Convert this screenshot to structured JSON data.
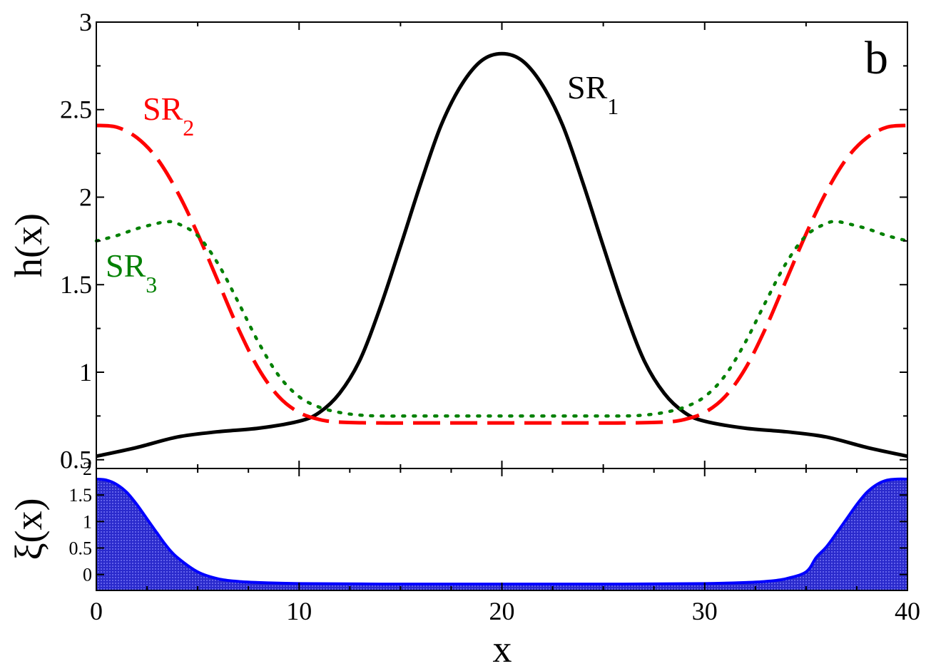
{
  "chart_data": [
    {
      "type": "line",
      "panel_label": "b",
      "ylabel": "h(x)",
      "xlim": [
        0,
        40
      ],
      "ylim": [
        0.45,
        3.0
      ],
      "xticks": [
        0,
        10,
        20,
        30,
        40
      ],
      "yticks": [
        0.5,
        1,
        1.5,
        2,
        2.5,
        3
      ],
      "ytick_labels": [
        "0.5",
        "1",
        "1.5",
        "2",
        "2.5",
        "3"
      ],
      "grid": false,
      "series": [
        {
          "name": "SR",
          "subscript": "1",
          "color": "#000000",
          "style": "solid",
          "x": [
            0,
            2,
            4,
            6,
            8,
            10,
            11,
            12,
            13,
            14,
            15,
            16,
            17,
            18,
            19,
            20,
            21,
            22,
            23,
            24,
            25,
            26,
            27,
            28,
            29,
            30,
            32,
            34,
            36,
            38,
            40
          ],
          "y": [
            0.52,
            0.57,
            0.63,
            0.66,
            0.68,
            0.72,
            0.77,
            0.88,
            1.07,
            1.37,
            1.72,
            2.08,
            2.41,
            2.64,
            2.78,
            2.82,
            2.78,
            2.64,
            2.41,
            2.08,
            1.72,
            1.37,
            1.07,
            0.88,
            0.77,
            0.72,
            0.68,
            0.66,
            0.63,
            0.57,
            0.52
          ]
        },
        {
          "name": "SR",
          "subscript": "2",
          "color": "#ff0000",
          "style": "dashed",
          "x": [
            0,
            1,
            2,
            3,
            4,
            5,
            6,
            7,
            8,
            9,
            10,
            11,
            12,
            14,
            16,
            20,
            24,
            26,
            28,
            29,
            30,
            31,
            32,
            33,
            34,
            35,
            36,
            37,
            38,
            39,
            40
          ],
          "y": [
            2.41,
            2.4,
            2.34,
            2.22,
            2.03,
            1.79,
            1.52,
            1.25,
            1.02,
            0.86,
            0.77,
            0.73,
            0.715,
            0.71,
            0.71,
            0.71,
            0.71,
            0.71,
            0.715,
            0.73,
            0.77,
            0.86,
            1.02,
            1.25,
            1.52,
            1.79,
            2.03,
            2.22,
            2.34,
            2.4,
            2.41
          ]
        },
        {
          "name": "SR",
          "subscript": "3",
          "color": "#008000",
          "style": "dotted",
          "x": [
            0,
            1,
            2,
            3,
            3.5,
            4,
            5,
            6,
            7,
            8,
            9,
            10,
            11,
            12,
            13,
            14,
            16,
            20,
            24,
            26,
            27,
            28,
            29,
            30,
            31,
            32,
            33,
            34,
            35,
            36,
            36.5,
            37,
            38,
            39,
            40
          ],
          "y": [
            1.75,
            1.78,
            1.82,
            1.85,
            1.86,
            1.85,
            1.78,
            1.62,
            1.4,
            1.17,
            0.98,
            0.86,
            0.8,
            0.77,
            0.755,
            0.75,
            0.75,
            0.75,
            0.75,
            0.75,
            0.755,
            0.77,
            0.8,
            0.86,
            0.98,
            1.17,
            1.4,
            1.62,
            1.78,
            1.85,
            1.86,
            1.85,
            1.82,
            1.78,
            1.75
          ]
        }
      ]
    },
    {
      "type": "area",
      "xlabel": "x",
      "ylabel": "ξ(x)",
      "xlim": [
        0,
        40
      ],
      "ylim": [
        -0.3,
        2.0
      ],
      "xticks": [
        0,
        10,
        20,
        30,
        40
      ],
      "xtick_labels": [
        "0",
        "10",
        "20",
        "30",
        "40"
      ],
      "yticks": [
        0,
        0.5,
        1,
        1.5,
        2
      ],
      "ytick_labels": [
        "0",
        "0.5",
        "1",
        "1.5",
        "2"
      ],
      "grid": false,
      "series": [
        {
          "name": "",
          "color": "#0000ff",
          "fill": "#3a3ad8",
          "x": [
            0,
            0.5,
            1,
            1.5,
            2,
            2.5,
            3,
            3.5,
            4,
            5,
            6,
            7,
            8,
            10,
            14,
            20,
            26,
            30,
            32,
            33,
            34,
            35,
            35.5,
            36,
            36.5,
            37,
            37.5,
            38,
            38.5,
            39,
            39.5,
            40
          ],
          "y": [
            1.8,
            1.78,
            1.7,
            1.55,
            1.32,
            1.05,
            0.78,
            0.52,
            0.32,
            0.05,
            -0.08,
            -0.13,
            -0.15,
            -0.17,
            -0.18,
            -0.18,
            -0.18,
            -0.17,
            -0.15,
            -0.13,
            -0.08,
            0.05,
            0.32,
            0.52,
            0.78,
            1.05,
            1.32,
            1.55,
            1.7,
            1.78,
            1.8,
            1.8
          ]
        }
      ]
    }
  ]
}
